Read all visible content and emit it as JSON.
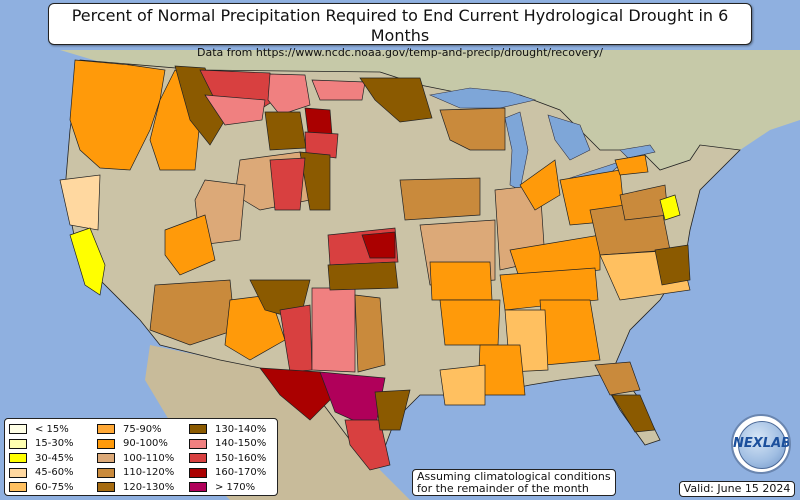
{
  "title": "Percent of Normal Precipitation Required to End Current Hydrological Drought in 6 Months",
  "subtitle": "Data from https://www.ncdc.noaa.gov/temp-and-precip/drought/recovery/",
  "note_line1": "Assuming climatological conditions",
  "note_line2": "for the remainder of the month",
  "valid": "Valid: June 15 2024",
  "logo_text": "NEXLAB",
  "legend": [
    {
      "label": "< 15%",
      "color": "#ffffe6"
    },
    {
      "label": "15-30%",
      "color": "#ffffb0"
    },
    {
      "label": "30-45%",
      "color": "#ffff00"
    },
    {
      "label": "45-60%",
      "color": "#ffd8a0"
    },
    {
      "label": "60-75%",
      "color": "#ffc060"
    },
    {
      "label": "75-90%",
      "color": "#ffa836"
    },
    {
      "label": "90-100%",
      "color": "#ff9a0a"
    },
    {
      "label": "100-110%",
      "color": "#dca978"
    },
    {
      "label": "110-120%",
      "color": "#c98a3c"
    },
    {
      "label": "120-130%",
      "color": "#a66b10"
    },
    {
      "label": "130-140%",
      "color": "#8b5a00"
    },
    {
      "label": "140-150%",
      "color": "#f08080"
    },
    {
      "label": "150-160%",
      "color": "#d84040"
    },
    {
      "label": "160-170%",
      "color": "#aa0000"
    },
    {
      "label": "> 170%",
      "color": "#b0005a"
    }
  ],
  "colors": {
    "ocean": "#8fb0e0",
    "land": "#c9c0a4",
    "lake": "#7ea6d8"
  }
}
